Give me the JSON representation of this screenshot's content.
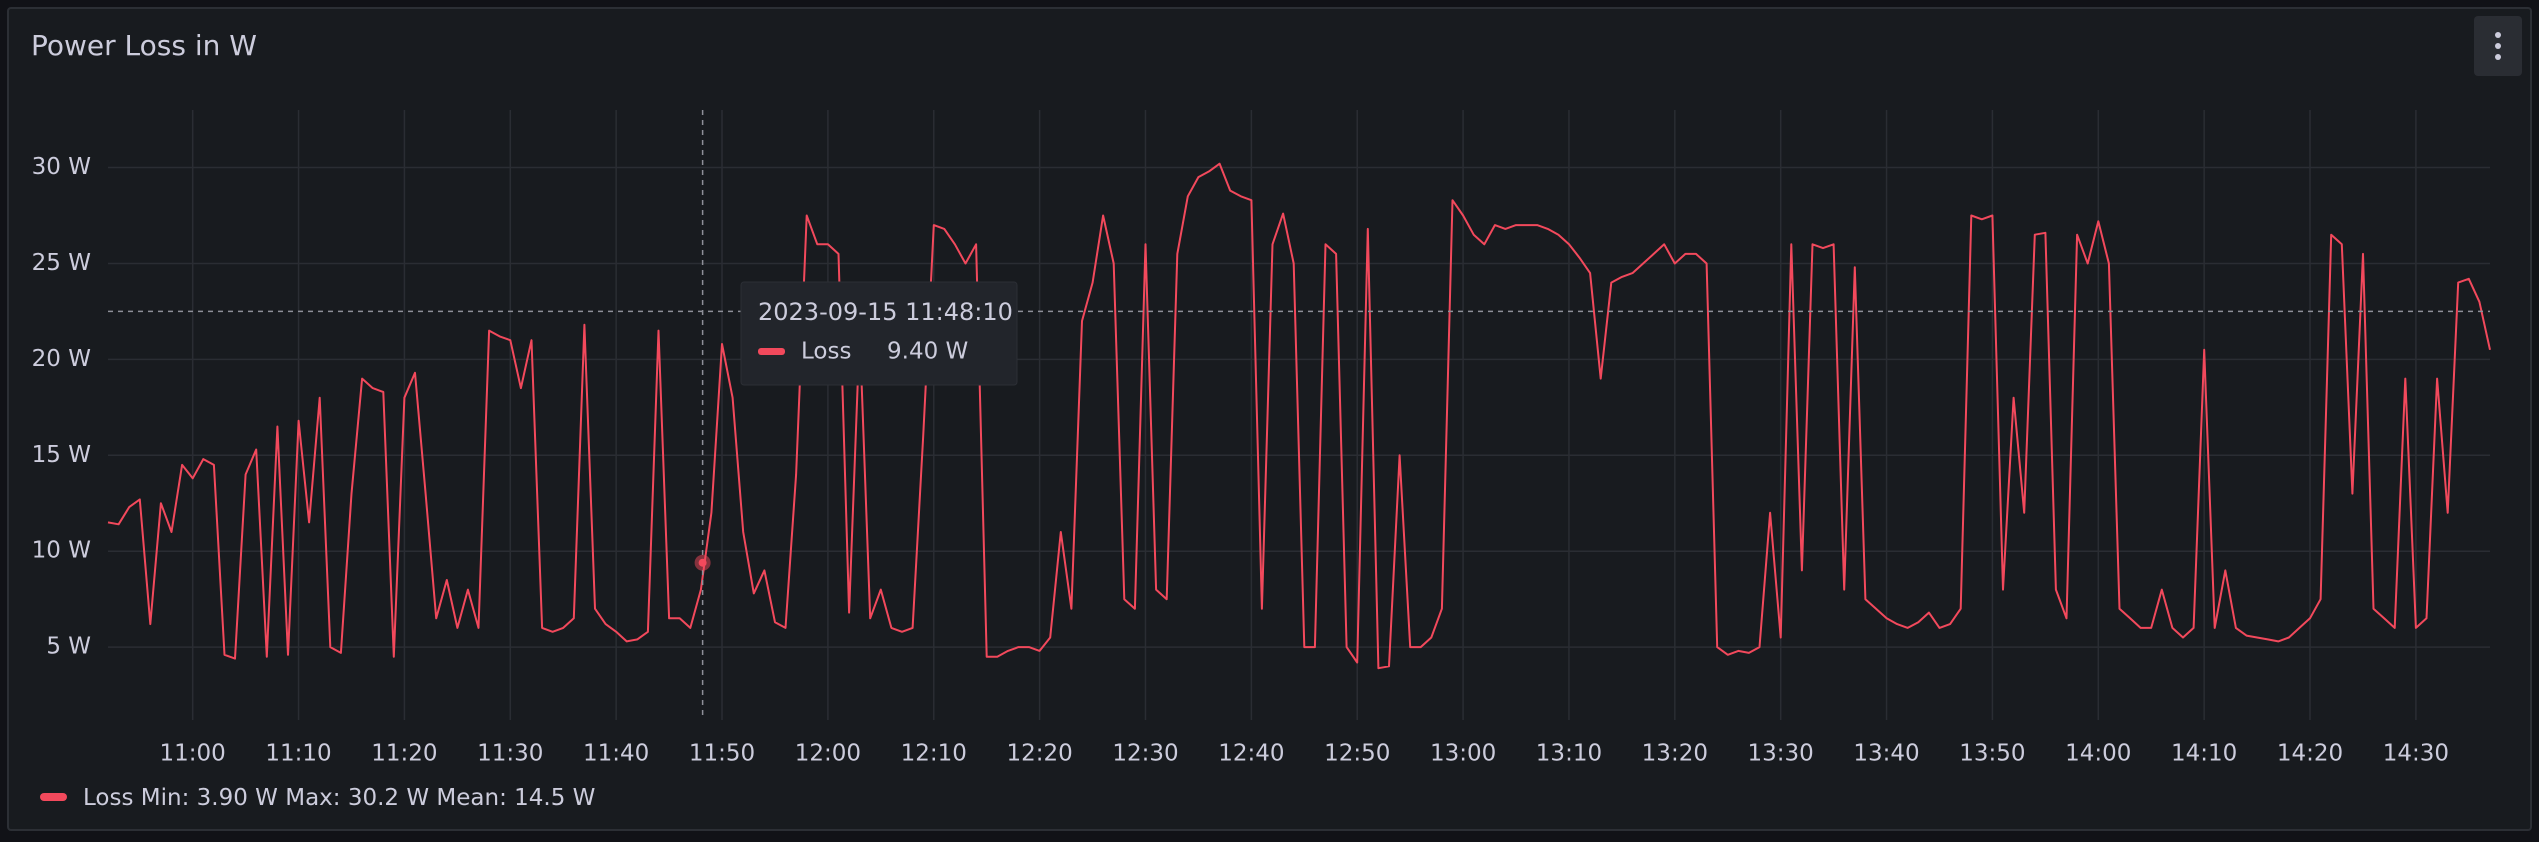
{
  "chart_data": {
    "type": "line",
    "title": "Power Loss in W",
    "x": [
      "10:52",
      "10:53",
      "10:54",
      "10:55",
      "10:56",
      "10:57",
      "10:58",
      "10:59",
      "11:00",
      "11:01",
      "11:02",
      "11:03",
      "11:04",
      "11:05",
      "11:06",
      "11:07",
      "11:08",
      "11:09",
      "11:10",
      "11:11",
      "11:12",
      "11:13",
      "11:14",
      "11:15",
      "11:16",
      "11:17",
      "11:18",
      "11:19",
      "11:20",
      "11:21",
      "11:22",
      "11:23",
      "11:24",
      "11:25",
      "11:26",
      "11:27",
      "11:28",
      "11:29",
      "11:30",
      "11:31",
      "11:32",
      "11:33",
      "11:34",
      "11:35",
      "11:36",
      "11:37",
      "11:38",
      "11:39",
      "11:40",
      "11:41",
      "11:42",
      "11:43",
      "11:44",
      "11:45",
      "11:46",
      "11:47",
      "11:48",
      "11:49",
      "11:50",
      "11:51",
      "11:52",
      "11:53",
      "11:54",
      "11:55",
      "11:56",
      "11:57",
      "11:58",
      "11:59",
      "12:00",
      "12:01",
      "12:02",
      "12:03",
      "12:04",
      "12:05",
      "12:06",
      "12:07",
      "12:08",
      "12:09",
      "12:10",
      "12:11",
      "12:12",
      "12:13",
      "12:14",
      "12:15",
      "12:16",
      "12:17",
      "12:18",
      "12:19",
      "12:20",
      "12:21",
      "12:22",
      "12:23",
      "12:24",
      "12:25",
      "12:26",
      "12:27",
      "12:28",
      "12:29",
      "12:30",
      "12:31",
      "12:32",
      "12:33",
      "12:34",
      "12:35",
      "12:36",
      "12:37",
      "12:38",
      "12:39",
      "12:40",
      "12:41",
      "12:42",
      "12:43",
      "12:44",
      "12:45",
      "12:46",
      "12:47",
      "12:48",
      "12:49",
      "12:50",
      "12:51",
      "12:52",
      "12:53",
      "12:54",
      "12:55",
      "12:56",
      "12:57",
      "12:58",
      "12:59",
      "13:00",
      "13:01",
      "13:02",
      "13:03",
      "13:04",
      "13:05",
      "13:06",
      "13:07",
      "13:08",
      "13:09",
      "13:10",
      "13:11",
      "13:12",
      "13:13",
      "13:14",
      "13:15",
      "13:16",
      "13:17",
      "13:18",
      "13:19",
      "13:20",
      "13:21",
      "13:22",
      "13:23",
      "13:24",
      "13:25",
      "13:26",
      "13:27",
      "13:28",
      "13:29",
      "13:30",
      "13:31",
      "13:32",
      "13:33",
      "13:34",
      "13:35",
      "13:36",
      "13:37",
      "13:38",
      "13:39",
      "13:40",
      "13:41",
      "13:42",
      "13:43",
      "13:44",
      "13:45",
      "13:46",
      "13:47",
      "13:48",
      "13:49",
      "13:50",
      "13:51",
      "13:52",
      "13:53",
      "13:54",
      "13:55",
      "13:56",
      "13:57",
      "13:58",
      "13:59",
      "14:00",
      "14:01",
      "14:02",
      "14:03",
      "14:04",
      "14:05",
      "14:06",
      "14:07",
      "14:08",
      "14:09",
      "14:10",
      "14:11",
      "14:12",
      "14:13",
      "14:14",
      "14:15",
      "14:16",
      "14:17",
      "14:18",
      "14:19",
      "14:20",
      "14:21",
      "14:22",
      "14:23",
      "14:24",
      "14:25",
      "14:26",
      "14:27",
      "14:28",
      "14:29",
      "14:30",
      "14:31",
      "14:32",
      "14:33",
      "14:34",
      "14:35",
      "14:36",
      "14:37"
    ],
    "series": [
      {
        "name": "Loss",
        "color": "#f2495c",
        "values": [
          11.5,
          11.4,
          12.3,
          12.7,
          6.2,
          12.5,
          11.0,
          14.5,
          13.8,
          14.8,
          14.5,
          4.6,
          4.4,
          14.0,
          15.3,
          4.5,
          16.5,
          4.6,
          16.8,
          11.5,
          18.0,
          5.0,
          4.7,
          13.0,
          19.0,
          18.5,
          18.3,
          4.5,
          18.0,
          19.3,
          13.0,
          6.5,
          8.5,
          6.0,
          8.0,
          6.0,
          21.5,
          21.2,
          21.0,
          18.5,
          21.0,
          6.0,
          5.8,
          6.0,
          6.5,
          21.8,
          7.0,
          6.2,
          5.8,
          5.3,
          5.4,
          5.8,
          21.5,
          6.5,
          6.5,
          6.0,
          8.0,
          12.0,
          20.8,
          18.0,
          11.0,
          7.8,
          9.0,
          6.3,
          6.0,
          14.0,
          27.5,
          26.0,
          26.0,
          25.5,
          6.8,
          21.5,
          6.5,
          8.0,
          6.0,
          5.8,
          6.0,
          16.0,
          27.0,
          26.8,
          26.0,
          25.0,
          26.0,
          4.5,
          4.5,
          4.8,
          5.0,
          5.0,
          4.8,
          5.5,
          11.0,
          7.0,
          22.0,
          24.0,
          27.5,
          25.0,
          7.5,
          7.0,
          26.0,
          8.0,
          7.5,
          25.5,
          28.5,
          29.5,
          29.8,
          30.2,
          28.8,
          28.5,
          28.3,
          7.0,
          26.0,
          27.6,
          25.0,
          5.0,
          5.0,
          26.0,
          25.5,
          5.0,
          4.2,
          26.8,
          3.9,
          4.0,
          15.0,
          5.0,
          5.0,
          5.5,
          7.0,
          28.3,
          27.5,
          26.5,
          26.0,
          27.0,
          26.8,
          27.0,
          27.0,
          27.0,
          26.8,
          26.5,
          26.0,
          25.3,
          24.5,
          19.0,
          24.0,
          24.3,
          24.5,
          25.0,
          25.5,
          26.0,
          25.0,
          25.5,
          25.5,
          25.0,
          5.0,
          4.6,
          4.8,
          4.7,
          5.0,
          12.0,
          5.5,
          26.0,
          9.0,
          26.0,
          25.8,
          26.0,
          8.0,
          24.8,
          7.5,
          7.0,
          6.5,
          6.2,
          6.0,
          6.3,
          6.8,
          6.0,
          6.2,
          7.0,
          27.5,
          27.3,
          27.5,
          8.0,
          18.0,
          12.0,
          26.5,
          26.6,
          8.0,
          6.5,
          26.5,
          25.0,
          27.2,
          25.0,
          7.0,
          6.5,
          6.0,
          6.0,
          8.0,
          6.0,
          5.5,
          6.0,
          20.5,
          6.0,
          9.0,
          6.0,
          5.6,
          5.5,
          5.4,
          5.3,
          5.5,
          6.0,
          6.5,
          7.5,
          26.5,
          26.0,
          13.0,
          25.5,
          7.0,
          6.5,
          6.0,
          19.0,
          6.0,
          6.5,
          19.0,
          12.0,
          24.0,
          24.2,
          23.0,
          20.5
        ]
      }
    ],
    "xlim": [
      "10:52",
      "14:37"
    ],
    "xticks": [
      "11:00",
      "11:10",
      "11:20",
      "11:30",
      "11:40",
      "11:50",
      "12:00",
      "12:10",
      "12:20",
      "12:30",
      "12:40",
      "12:50",
      "13:00",
      "13:10",
      "13:20",
      "13:30",
      "13:40",
      "13:50",
      "14:00",
      "14:10",
      "14:20",
      "14:30"
    ],
    "ylim": [
      1.2,
      33
    ],
    "yticks": [
      {
        "value": 5,
        "label": "5 W"
      },
      {
        "value": 10,
        "label": "10 W"
      },
      {
        "value": 15,
        "label": "15 W"
      },
      {
        "value": 20,
        "label": "20 W"
      },
      {
        "value": 25,
        "label": "25 W"
      },
      {
        "value": 30,
        "label": "30 W"
      }
    ],
    "grid": true,
    "legend": "bottom-left",
    "stats": [
      {
        "label": "Min:",
        "value": 3.9,
        "value_label": "3.90 W"
      },
      {
        "label": "Max:",
        "value": 30.2,
        "value_label": "30.2 W"
      },
      {
        "label": "Mean:",
        "value": 14.5,
        "value_label": "14.5 W"
      }
    ],
    "crosshair": {
      "x": "11:48:10",
      "y": 22.5
    },
    "tooltip": {
      "time": "2023-09-15 11:48:10",
      "series": "Loss",
      "value": 9.4,
      "value_label": "9.40 W"
    }
  }
}
